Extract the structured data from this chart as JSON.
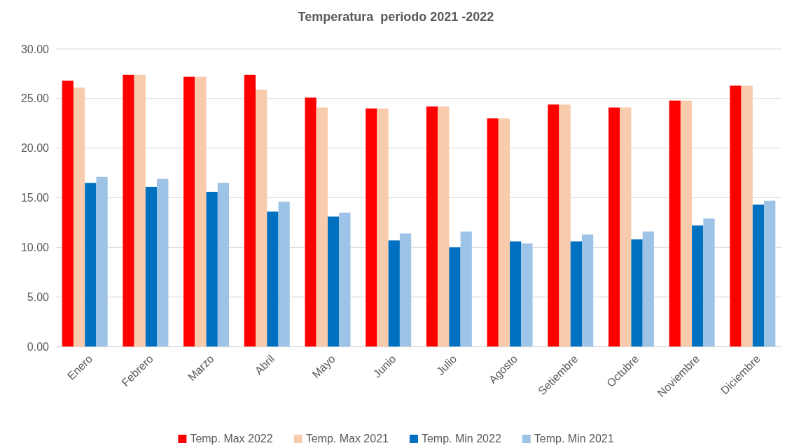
{
  "chart_data": {
    "type": "bar",
    "title": "Temperatura  periodo 2021 -2022",
    "categories": [
      "Enero",
      "Febrero",
      "Marzo",
      "Abril",
      "Mayo",
      "Junio",
      "Julio",
      "Agosto",
      "Setiembre",
      "Octubre",
      "Noviembre",
      "Diciembre"
    ],
    "series": [
      {
        "name": "Temp. Max 2022",
        "color": "#ff0000",
        "values": [
          26.8,
          27.4,
          27.2,
          27.4,
          25.1,
          24.0,
          24.2,
          23.0,
          24.4,
          24.1,
          24.8,
          26.3
        ]
      },
      {
        "name": "Temp. Max 2021",
        "color": "#f8cbad",
        "values": [
          26.1,
          27.4,
          27.2,
          25.9,
          24.1,
          24.0,
          24.2,
          23.0,
          24.4,
          24.1,
          24.8,
          26.3
        ]
      },
      {
        "name": "Temp. Min 2022",
        "color": "#0070c0",
        "values": [
          16.5,
          16.1,
          15.6,
          13.6,
          13.1,
          10.7,
          10.0,
          10.6,
          10.6,
          10.8,
          12.2,
          14.3
        ]
      },
      {
        "name": "Temp. Min 2021",
        "color": "#9dc3e6",
        "values": [
          17.1,
          16.9,
          16.5,
          14.6,
          13.5,
          11.4,
          11.6,
          10.4,
          11.3,
          11.6,
          12.9,
          14.7
        ]
      }
    ],
    "ylim": [
      0,
      30
    ],
    "yticks": [
      {
        "value": 0,
        "label": "0.00"
      },
      {
        "value": 5,
        "label": "5.00"
      },
      {
        "value": 10,
        "label": "10.00"
      },
      {
        "value": 15,
        "label": "15.00"
      },
      {
        "value": 20,
        "label": "20.00"
      },
      {
        "value": 25,
        "label": "25.00"
      },
      {
        "value": 30,
        "label": "30.00"
      }
    ],
    "grid": "y",
    "legend": "bottom"
  }
}
